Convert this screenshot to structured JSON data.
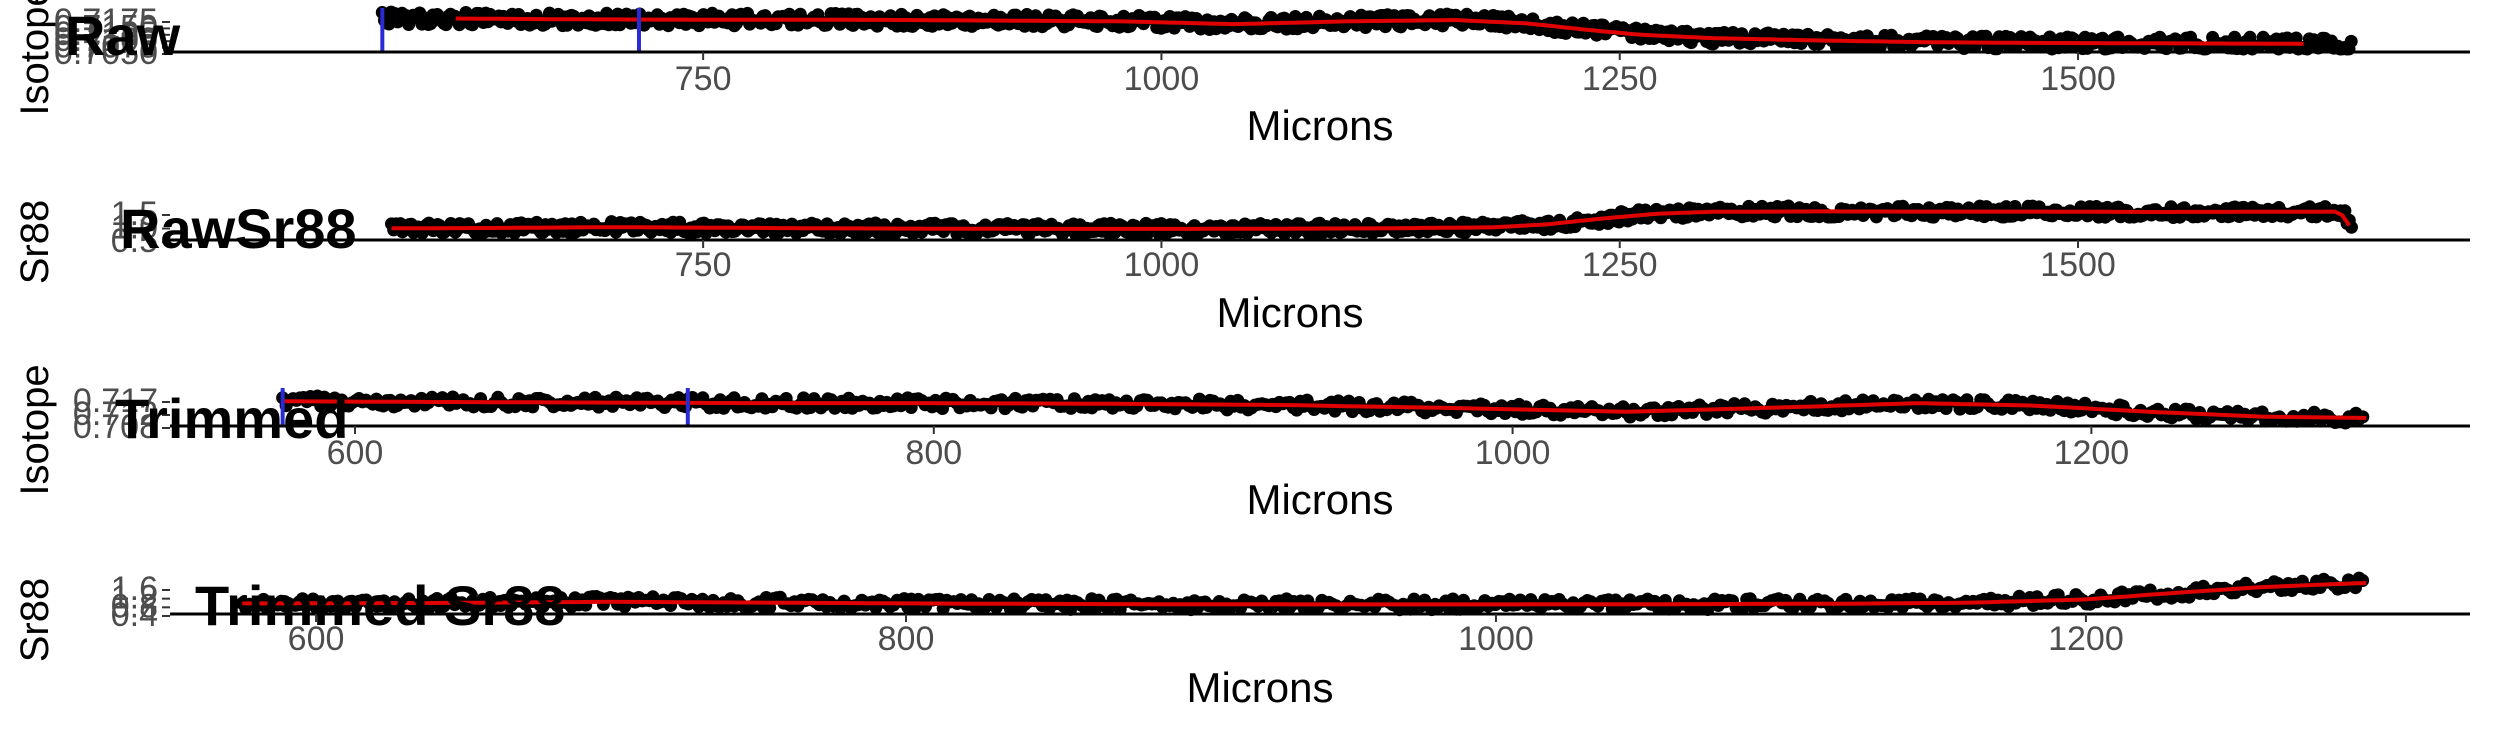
{
  "colors": {
    "points": "#000000",
    "fit": "#e00000",
    "marker": "#2b2bd6",
    "axis": "#000000",
    "tick_text": "#4d4d4d"
  },
  "chart_data": [
    {
      "type": "scatter",
      "title": "Raw",
      "ylabel": "Isotope",
      "xlabel": "Microns",
      "xlim": [
        541,
        1662
      ],
      "xticks": [
        750,
        1000,
        1250,
        1500
      ],
      "yticks": [
        "0.7175",
        "0.7150",
        "0.7125",
        "0.7100",
        "0.7075",
        "0.7050"
      ],
      "markers_x": [
        575,
        715
      ],
      "x": [
        575,
        620,
        680,
        740,
        800,
        860,
        920,
        980,
        1040,
        1100,
        1160,
        1200,
        1230,
        1260,
        1300,
        1360,
        1420,
        1480,
        1540,
        1600,
        1640,
        1650
      ],
      "y": [
        0.7168,
        0.7166,
        0.7164,
        0.7163,
        0.7163,
        0.7162,
        0.716,
        0.7158,
        0.715,
        0.7158,
        0.7162,
        0.7152,
        0.7135,
        0.712,
        0.711,
        0.7103,
        0.7098,
        0.7096,
        0.7095,
        0.7094,
        0.7093,
        0.7093
      ],
      "ylim": [
        0.707,
        0.7185
      ]
    },
    {
      "type": "scatter",
      "title": "RawSr88",
      "ylabel": "Sr88",
      "xlabel": "Microns",
      "xlim": [
        541,
        1662
      ],
      "xticks": [
        750,
        1000,
        1250,
        1500
      ],
      "yticks": [
        "1.5",
        "1.0",
        "0.5"
      ],
      "x": [
        580,
        640,
        700,
        760,
        820,
        880,
        940,
        1000,
        1060,
        1120,
        1180,
        1210,
        1240,
        1270,
        1300,
        1360,
        1420,
        1480,
        1540,
        1600,
        1640,
        1646,
        1650
      ],
      "y": [
        0.6,
        0.62,
        0.66,
        0.63,
        0.6,
        0.58,
        0.57,
        0.57,
        0.58,
        0.6,
        0.65,
        0.8,
        1.1,
        1.35,
        1.45,
        1.47,
        1.46,
        1.46,
        1.44,
        1.45,
        1.46,
        1.2,
        0.3
      ],
      "ylim": [
        0,
        1.8
      ]
    },
    {
      "type": "scatter",
      "title": "Trimmed",
      "ylabel": "Isotope",
      "xlabel": "Microns",
      "xlim": [
        581,
        1298
      ],
      "xticks": [
        600,
        800,
        1000,
        1200
      ],
      "yticks": [
        "0.717",
        "0.712",
        "0.708"
      ],
      "markers_x": [
        575,
        715
      ],
      "x": [
        575,
        620,
        680,
        740,
        800,
        860,
        920,
        980,
        1040,
        1100,
        1140,
        1180,
        1220,
        1260,
        1295
      ],
      "y": [
        0.7165,
        0.7164,
        0.7163,
        0.7162,
        0.7162,
        0.7161,
        0.7159,
        0.7154,
        0.7148,
        0.7156,
        0.7162,
        0.7158,
        0.7148,
        0.714,
        0.7138
      ],
      "ylim": [
        0.7125,
        0.718
      ]
    },
    {
      "type": "scatter",
      "title": "Trimmed Sr88",
      "ylabel": "Sr88",
      "xlabel": "Microns",
      "xlim": [
        581,
        1298
      ],
      "xticks": [
        600,
        800,
        1000,
        1200
      ],
      "yticks": [
        "1.6",
        "1.2",
        "0.8",
        "0.4"
      ],
      "x": [
        575,
        640,
        700,
        760,
        820,
        880,
        940,
        1000,
        1060,
        1120,
        1160,
        1200,
        1230,
        1260,
        1290,
        1295
      ],
      "y": [
        0.55,
        0.57,
        0.62,
        0.58,
        0.54,
        0.52,
        0.51,
        0.51,
        0.52,
        0.54,
        0.58,
        0.72,
        1.0,
        1.25,
        1.4,
        1.42
      ],
      "ylim": [
        0.1,
        1.55
      ]
    }
  ]
}
